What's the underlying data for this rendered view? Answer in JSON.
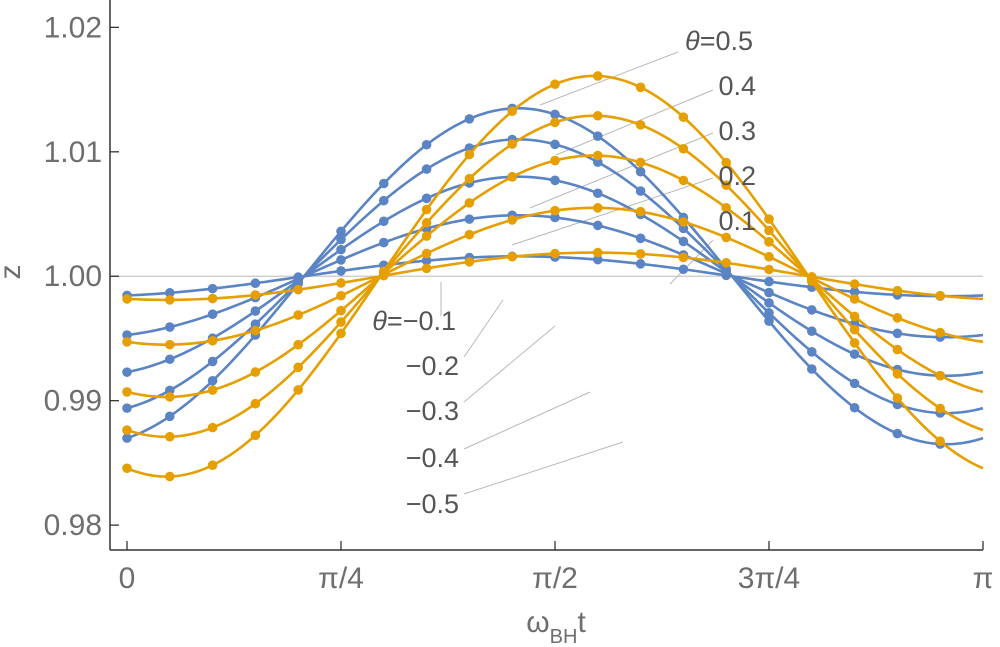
{
  "chart_data": {
    "type": "line",
    "xlabel": "ωBHt",
    "ylabel": "z",
    "xlim": [
      0,
      3.14159265
    ],
    "ylim": [
      0.978,
      1.0222
    ],
    "x_ticks": [
      {
        "value": 0,
        "label": "0"
      },
      {
        "value": 0.785398,
        "label": "π/4"
      },
      {
        "value": 1.570796,
        "label": "π/2"
      },
      {
        "value": 2.356194,
        "label": "3π/4"
      },
      {
        "value": 3.141593,
        "label": "π"
      }
    ],
    "y_ticks": [
      {
        "value": 0.98,
        "label": "0.98"
      },
      {
        "value": 0.99,
        "label": "0.99"
      },
      {
        "value": 1.0,
        "label": "1.00"
      },
      {
        "value": 1.01,
        "label": "1.01"
      },
      {
        "value": 1.02,
        "label": "1.02"
      }
    ],
    "reference_line": {
      "y": 1.0
    },
    "model": {
      "x_points": 20
    },
    "series": [
      {
        "theta": 0.5,
        "label": "θ=0.5",
        "color": "#E69F00",
        "amplitude": 0.0161,
        "phase": 0.93
      },
      {
        "theta": 0.4,
        "label": "0.4",
        "color": "#E69F00",
        "amplitude": 0.0129,
        "phase": 0.93
      },
      {
        "theta": 0.3,
        "label": "0.3",
        "color": "#E69F00",
        "amplitude": 0.0097,
        "phase": 0.93
      },
      {
        "theta": 0.2,
        "label": "0.2",
        "color": "#E69F00",
        "amplitude": 0.0055,
        "phase": 0.93
      },
      {
        "theta": 0.1,
        "label": "0.1",
        "color": "#E69F00",
        "amplitude": 0.0019,
        "phase": 0.93
      },
      {
        "theta": -0.1,
        "label": "θ=−0.1",
        "color": "#5B84C4",
        "amplitude": 0.0016,
        "phase": 0.65
      },
      {
        "theta": -0.2,
        "label": "−0.2",
        "color": "#5B84C4",
        "amplitude": 0.0049,
        "phase": 0.65
      },
      {
        "theta": -0.3,
        "label": "−0.3",
        "color": "#5B84C4",
        "amplitude": 0.008,
        "phase": 0.65
      },
      {
        "theta": -0.4,
        "label": "−0.4",
        "color": "#5B84C4",
        "amplitude": 0.011,
        "phase": 0.65
      },
      {
        "theta": -0.5,
        "label": "−0.5",
        "color": "#5B84C4",
        "amplitude": 0.0135,
        "phase": 0.65
      }
    ]
  }
}
